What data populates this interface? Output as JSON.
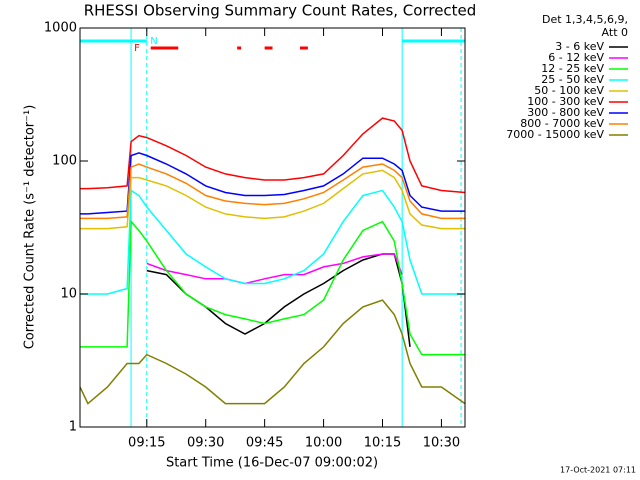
{
  "chart_data": {
    "type": "line",
    "title": "RHESSI Observing Summary Count Rates, Corrected",
    "x_label": "Start Time (16-Dec-07 09:00:02)",
    "y_label": "Corrected Count Rate (s⁻¹ detector⁻¹)",
    "legend_title": [
      "Det 1,3,4,5,6,9,",
      "Att 0"
    ],
    "footer": "17-Oct-2021 07:11",
    "log_y": true,
    "xlim": [
      "08:58",
      "10:36"
    ],
    "xticks": [
      "09:15",
      "09:30",
      "09:45",
      "10:00",
      "10:15",
      "10:30"
    ],
    "ylim": [
      1,
      1000
    ],
    "yticks": [
      1,
      10,
      100,
      1000
    ],
    "x": [
      "08:58",
      "09:00",
      "09:05",
      "09:10",
      "09:11",
      "09:13",
      "09:15",
      "09:20",
      "09:25",
      "09:30",
      "09:35",
      "09:40",
      "09:45",
      "09:50",
      "09:55",
      "10:00",
      "10:05",
      "10:10",
      "10:15",
      "10:18",
      "10:20",
      "10:22",
      "10:25",
      "10:30",
      "10:36"
    ],
    "series": [
      {
        "name": "3 - 6 keV",
        "color": "#000000",
        "values": [
          null,
          null,
          null,
          null,
          null,
          null,
          15,
          14,
          10,
          8,
          6,
          5,
          6,
          8,
          10,
          12,
          15,
          18,
          20,
          20,
          12,
          4,
          null,
          null,
          null
        ]
      },
      {
        "name": "6 - 12 keV",
        "color": "#ff00ff",
        "values": [
          null,
          null,
          null,
          null,
          null,
          null,
          17,
          15,
          14,
          13,
          13,
          12,
          13,
          14,
          14,
          16,
          17,
          19,
          20,
          20,
          14,
          null,
          null,
          null,
          null
        ]
      },
      {
        "name": "12 - 25 keV",
        "color": "#00ff00",
        "values": [
          4,
          4,
          4,
          4,
          35,
          30,
          25,
          15,
          10,
          8,
          7,
          6.5,
          6,
          6.5,
          7,
          9,
          18,
          30,
          35,
          25,
          12,
          5,
          3.5,
          3.5,
          3.5
        ]
      },
      {
        "name": "25 - 50 keV",
        "color": "#00ffff",
        "values": [
          10,
          10,
          10,
          11,
          60,
          55,
          45,
          30,
          20,
          16,
          13,
          12,
          12,
          13,
          15,
          20,
          35,
          55,
          60,
          45,
          35,
          18,
          10,
          10,
          10
        ]
      },
      {
        "name": "50 - 100 keV",
        "color": "#e0c000",
        "values": [
          31,
          31,
          31,
          32,
          75,
          75,
          72,
          65,
          55,
          45,
          40,
          38,
          37,
          38,
          42,
          48,
          62,
          80,
          85,
          75,
          60,
          40,
          33,
          31,
          31
        ]
      },
      {
        "name": "100 - 300 keV",
        "color": "#ff0000",
        "values": [
          62,
          62,
          63,
          65,
          140,
          155,
          150,
          130,
          110,
          90,
          80,
          75,
          72,
          72,
          75,
          80,
          110,
          160,
          210,
          200,
          170,
          100,
          65,
          60,
          58
        ]
      },
      {
        "name": "300 - 800 keV",
        "color": "#0000ff",
        "values": [
          40,
          40,
          41,
          42,
          110,
          115,
          110,
          95,
          80,
          65,
          58,
          55,
          55,
          56,
          60,
          65,
          80,
          105,
          105,
          95,
          85,
          55,
          45,
          42,
          42
        ]
      },
      {
        "name": "800 - 7000 keV",
        "color": "#ff8000",
        "values": [
          37,
          37,
          37,
          38,
          90,
          95,
          90,
          80,
          68,
          55,
          50,
          48,
          47,
          48,
          52,
          58,
          72,
          90,
          95,
          85,
          75,
          50,
          40,
          37,
          37
        ]
      },
      {
        "name": "7000 - 15000 keV",
        "color": "#808000",
        "values": [
          2,
          1.5,
          2,
          3,
          3,
          3,
          3.5,
          3,
          2.5,
          2,
          1.5,
          1.5,
          1.5,
          2,
          3,
          4,
          6,
          8,
          9,
          7,
          5,
          3,
          2,
          2,
          1.5
        ]
      }
    ],
    "flags": [
      {
        "label": "F",
        "color": "#ff0000",
        "intervals": [
          [
            "09:16",
            "09:23"
          ],
          [
            "09:38",
            "09:39"
          ],
          [
            "09:45",
            "09:47"
          ],
          [
            "09:54",
            "09:56"
          ]
        ]
      },
      {
        "label": "N",
        "color": "#00ffff",
        "intervals": [
          [
            "08:58",
            "09:15"
          ],
          [
            "10:20",
            "10:36"
          ]
        ]
      }
    ],
    "night_solid": [
      "09:11",
      "10:20"
    ],
    "night_dashed": [
      "09:15",
      "10:35"
    ]
  }
}
